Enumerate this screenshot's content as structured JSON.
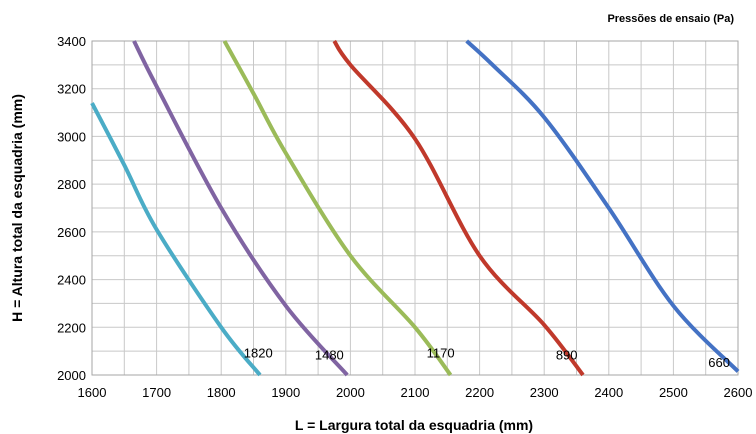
{
  "chart_data": {
    "type": "line",
    "title": "",
    "legend_title": "Pressões de ensaio  (Pa)",
    "xlabel": "L = Largura total da esquadria (mm)",
    "ylabel": "H = Altura total da esquadria (mm)",
    "xlim": [
      1600,
      2600
    ],
    "ylim": [
      2000,
      3400
    ],
    "xticks": [
      1600,
      1700,
      1800,
      1900,
      2000,
      2100,
      2200,
      2300,
      2400,
      2500,
      2600
    ],
    "yticks": [
      2000,
      2200,
      2400,
      2600,
      2800,
      3000,
      3200,
      3400
    ],
    "x_minor_step": 50,
    "y_minor_step": 100,
    "grid": true,
    "series": [
      {
        "name": "660",
        "color": "#4472C4",
        "points": [
          [
            2180,
            3400
          ],
          [
            2220,
            3300
          ],
          [
            2300,
            3080
          ],
          [
            2400,
            2700
          ],
          [
            2500,
            2290
          ],
          [
            2600,
            2015
          ]
        ]
      },
      {
        "name": "890",
        "color": "#C0392B",
        "points": [
          [
            1975,
            3400
          ],
          [
            2000,
            3300
          ],
          [
            2100,
            2990
          ],
          [
            2200,
            2500
          ],
          [
            2300,
            2210
          ],
          [
            2360,
            2000
          ]
        ]
      },
      {
        "name": "1170",
        "color": "#9BBB59",
        "points": [
          [
            1805,
            3400
          ],
          [
            1850,
            3180
          ],
          [
            1900,
            2930
          ],
          [
            2000,
            2500
          ],
          [
            2100,
            2200
          ],
          [
            2155,
            2000
          ]
        ]
      },
      {
        "name": "1480",
        "color": "#8064A2",
        "points": [
          [
            1665,
            3400
          ],
          [
            1700,
            3210
          ],
          [
            1800,
            2700
          ],
          [
            1900,
            2290
          ],
          [
            1995,
            2000
          ]
        ]
      },
      {
        "name": "1820",
        "color": "#4BACC6",
        "points": [
          [
            1600,
            3140
          ],
          [
            1650,
            2880
          ],
          [
            1700,
            2610
          ],
          [
            1800,
            2200
          ],
          [
            1860,
            2000
          ]
        ]
      }
    ],
    "annotations": [
      {
        "text": "660",
        "x": 2554,
        "y": 2055
      },
      {
        "text": "890",
        "x": 2318,
        "y": 2085
      },
      {
        "text": "1170",
        "x": 2118,
        "y": 2095
      },
      {
        "text": "1480",
        "x": 1945,
        "y": 2085
      },
      {
        "text": "1820",
        "x": 1835,
        "y": 2095
      }
    ]
  }
}
